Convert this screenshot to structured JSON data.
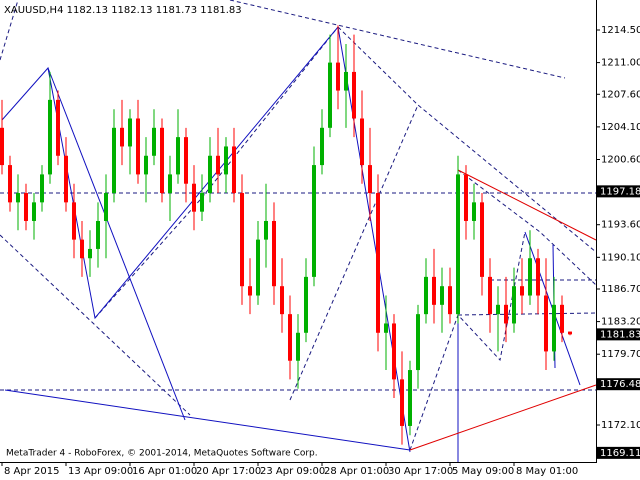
{
  "chart_data": {
    "type": "candlestick",
    "header": {
      "symbol": "XAUUSD,H4",
      "open": "1182.13",
      "high": "1182.13",
      "low": "1181.73",
      "close": "1181.83"
    },
    "footer": "MetaTrader 4 - RoboForex, © 2001-2014, MetaQuotes Software Corp.",
    "categories": [
      "8 Apr 2015",
      null,
      null,
      null,
      null,
      null,
      null,
      null,
      "13 Apr 09:00",
      null,
      null,
      null,
      null,
      null,
      null,
      null,
      "16 Apr 01:00",
      null,
      null,
      null,
      null,
      null,
      null,
      null,
      "20 Apr 17:00",
      null,
      null,
      null,
      null,
      null,
      null,
      null,
      "23 Apr 09:00",
      null,
      null,
      null,
      null,
      null,
      null,
      null,
      "28 Apr 01:00",
      null,
      null,
      null,
      null,
      null,
      null,
      null,
      "30 Apr 17:00",
      null,
      null,
      null,
      null,
      null,
      null,
      null,
      "5 May 09:00",
      null,
      null,
      null,
      null,
      null,
      null,
      null,
      "8 May 01:00",
      null,
      null,
      null,
      null,
      null,
      null,
      null
    ],
    "open": [
      1204,
      1200,
      1196,
      1197,
      1194,
      1196,
      1199,
      1207,
      1201,
      1196,
      1192,
      1190,
      1191,
      1194,
      1197,
      1204,
      1202,
      1205,
      1199,
      1201,
      1204,
      1197,
      1199,
      1203,
      1198,
      1195,
      1197,
      1201,
      1199,
      1202,
      1197,
      1187,
      1186,
      1192,
      1194,
      1187,
      1184,
      1179,
      1182,
      1188,
      1200,
      1204,
      1211,
      1208,
      1210,
      1205,
      1200,
      1197,
      1182,
      1183,
      1177,
      1172,
      1178,
      1184,
      1188,
      1185,
      1187,
      1184,
      1199,
      1194,
      1196,
      1188,
      1184,
      1185,
      1183,
      1187,
      1186,
      1190,
      1186,
      1180,
      1185,
      1182.13
    ],
    "high": [
      1207,
      1201,
      1199,
      1198,
      1197,
      1200,
      1210,
      1208,
      1203,
      1198,
      1194,
      1193,
      1196,
      1199,
      1206,
      1207,
      1206,
      1207,
      1203,
      1206,
      1205,
      1201,
      1206,
      1204,
      1200,
      1199,
      1203,
      1204,
      1203,
      1204,
      1199,
      1190,
      1194,
      1198,
      1196,
      1190,
      1186,
      1184,
      1190,
      1202,
      1206,
      1214,
      1215,
      1213,
      1214,
      1208,
      1204,
      1199,
      1186,
      1184,
      1180,
      1179,
      1185,
      1190,
      1191,
      1189,
      1189,
      1201,
      1200,
      1198,
      1197,
      1190,
      1187,
      1188,
      1189,
      1190,
      1193,
      1191,
      1190,
      1188,
      1186,
      1182.13
    ],
    "low": [
      1199,
      1195,
      1193,
      1193,
      1192,
      1195,
      1198,
      1200,
      1195,
      1190,
      1188,
      1188,
      1189,
      1190,
      1196,
      1200,
      1199,
      1198,
      1196,
      1200,
      1196,
      1194,
      1198,
      1196,
      1193,
      1194,
      1196,
      1197,
      1197,
      1196,
      1185,
      1184,
      1185,
      1189,
      1185,
      1182,
      1177,
      1176,
      1181,
      1187,
      1199,
      1203,
      1206,
      1204,
      1203,
      1198,
      1194,
      1180,
      1178,
      1175,
      1170,
      1171,
      1176,
      1183,
      1183,
      1182,
      1183,
      1183,
      1192,
      1192,
      1186,
      1182,
      1180,
      1181,
      1182,
      1184,
      1185,
      1184,
      1178,
      1179,
      1181,
      1181.73
    ],
    "close": [
      1200,
      1196,
      1197,
      1194,
      1196,
      1199,
      1207,
      1201,
      1196,
      1192,
      1190,
      1191,
      1194,
      1197,
      1204,
      1202,
      1205,
      1199,
      1201,
      1204,
      1197,
      1199,
      1203,
      1198,
      1195,
      1197,
      1201,
      1199,
      1202,
      1197,
      1187,
      1186,
      1192,
      1194,
      1187,
      1184,
      1179,
      1182,
      1188,
      1200,
      1204,
      1211,
      1208,
      1210,
      1205,
      1200,
      1197,
      1182,
      1183,
      1177,
      1172,
      1178,
      1184,
      1188,
      1185,
      1187,
      1184,
      1199,
      1194,
      1196,
      1188,
      1184,
      1185,
      1183,
      1187,
      1186,
      1190,
      1186,
      1180,
      1185,
      1182,
      1181.83
    ],
    "up_color": "#00b000",
    "down_color": "#ff0000",
    "ylim": [
      1168.13,
      1217.72
    ],
    "yticks": [
      {
        "value": 1214.5,
        "label": "1214.50"
      },
      {
        "value": 1211.0,
        "label": "1211.00"
      },
      {
        "value": 1207.6,
        "label": "1207.60"
      },
      {
        "value": 1204.1,
        "label": "1204.10"
      },
      {
        "value": 1200.6,
        "label": "1200.60"
      },
      {
        "value": 1193.6,
        "label": "1193.60"
      },
      {
        "value": 1190.1,
        "label": "1190.10"
      },
      {
        "value": 1186.7,
        "label": "1186.70"
      },
      {
        "value": 1183.2,
        "label": "1183.20"
      },
      {
        "value": 1179.7,
        "label": "1179.70"
      },
      {
        "value": 1172.1,
        "label": "1172.10"
      }
    ],
    "price_labels": [
      {
        "value": 1197.18,
        "label": "1197.18"
      },
      {
        "value": 1181.83,
        "label": "1181.83"
      },
      {
        "value": 1176.48,
        "label": "1176.48"
      },
      {
        "value": 1169.11,
        "label": "1169.11"
      }
    ],
    "grid": false
  }
}
